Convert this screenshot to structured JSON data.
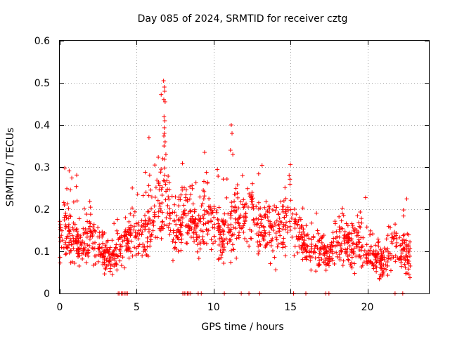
{
  "chart_data": {
    "type": "scatter",
    "title": "Day 085 of 2024, SRMTID for receiver cztg",
    "xlabel": "GPS time / hours",
    "ylabel": "SRMTID / TECUs",
    "xlim": [
      0,
      24
    ],
    "ylim": [
      0,
      0.6
    ],
    "xticks": [
      0,
      5,
      10,
      15,
      20
    ],
    "yticks": [
      0,
      0.1,
      0.2,
      0.3,
      0.4,
      0.5,
      0.6
    ],
    "xtick_labels": [
      "0",
      "5",
      "10",
      "15",
      "20"
    ],
    "ytick_labels": [
      "0",
      "0.1",
      "0.2",
      "0.3",
      "0.4",
      "0.5",
      "0.6"
    ],
    "grid": true,
    "marker": "+",
    "color": "#ff0000",
    "series": [
      {
        "name": "SRMTID",
        "approx_envelope": {
          "x": [
            0,
            0.5,
            1,
            1.5,
            2,
            2.5,
            3,
            3.5,
            4,
            4.5,
            5,
            5.5,
            6,
            6.5,
            6.8,
            7,
            7.5,
            8,
            8.5,
            9,
            9.5,
            10,
            10.5,
            11,
            11.5,
            12,
            12.5,
            13,
            13.5,
            14,
            14.5,
            15,
            15.5,
            16,
            16.5,
            17,
            17.5,
            18,
            18.5,
            19,
            19.5,
            20,
            20.5,
            21,
            21.5,
            22,
            22.5,
            22.8
          ],
          "center": [
            0.12,
            0.15,
            0.13,
            0.12,
            0.14,
            0.11,
            0.09,
            0.08,
            0.12,
            0.13,
            0.15,
            0.14,
            0.17,
            0.2,
            0.3,
            0.22,
            0.14,
            0.17,
            0.2,
            0.15,
            0.2,
            0.17,
            0.13,
            0.16,
            0.17,
            0.18,
            0.2,
            0.15,
            0.17,
            0.13,
            0.16,
            0.2,
            0.14,
            0.12,
            0.1,
            0.11,
            0.09,
            0.13,
            0.12,
            0.11,
            0.12,
            0.1,
            0.09,
            0.07,
            0.12,
            0.11,
            0.1,
            0.08
          ],
          "spread": [
            0.06,
            0.08,
            0.07,
            0.05,
            0.07,
            0.06,
            0.05,
            0.05,
            0.06,
            0.06,
            0.07,
            0.07,
            0.08,
            0.08,
            0.19,
            0.09,
            0.06,
            0.08,
            0.09,
            0.07,
            0.09,
            0.08,
            0.06,
            0.1,
            0.08,
            0.09,
            0.1,
            0.07,
            0.08,
            0.07,
            0.08,
            0.08,
            0.06,
            0.05,
            0.05,
            0.05,
            0.05,
            0.06,
            0.06,
            0.06,
            0.06,
            0.06,
            0.05,
            0.05,
            0.07,
            0.06,
            0.06,
            0.05
          ]
        },
        "zero_clusters_hours": [
          3.8,
          3.9,
          4.0,
          4.1,
          4.2,
          4.3,
          4.4,
          8.0,
          8.1,
          8.2,
          8.3,
          8.4,
          8.5,
          9.0,
          9.2,
          10.7,
          11.8,
          12.3,
          13.0,
          15.2,
          16.0,
          17.3,
          17.5,
          21.8,
          22.3
        ]
      }
    ]
  }
}
